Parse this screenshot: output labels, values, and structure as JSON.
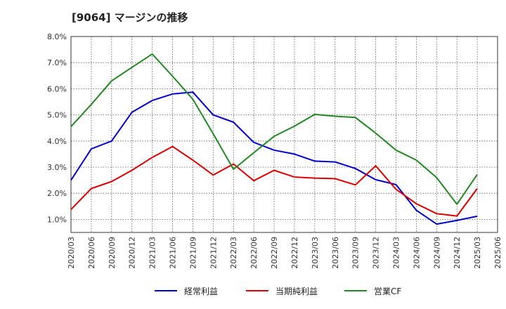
{
  "chart_data": {
    "type": "line",
    "title": "[9064]  マージンの推移",
    "xlabel": "",
    "ylabel": "",
    "ylim": [
      0.5,
      8.0
    ],
    "yticks": [
      "1.0%",
      "2.0%",
      "3.0%",
      "4.0%",
      "5.0%",
      "6.0%",
      "7.0%",
      "8.0%"
    ],
    "ytick_values": [
      1.0,
      2.0,
      3.0,
      4.0,
      5.0,
      6.0,
      7.0,
      8.0
    ],
    "grid": true,
    "legend_position": "bottom",
    "categories": [
      "2020/03",
      "2020/06",
      "2020/09",
      "2020/12",
      "2021/03",
      "2021/06",
      "2021/09",
      "2021/12",
      "2022/03",
      "2022/06",
      "2022/09",
      "2022/12",
      "2023/03",
      "2023/06",
      "2023/09",
      "2023/12",
      "2024/03",
      "2024/06",
      "2024/09",
      "2024/12",
      "2025/03",
      "2025/06"
    ],
    "series": [
      {
        "name": "経常利益",
        "color": "#0000cc",
        "values": [
          2.5,
          3.7,
          4.0,
          5.1,
          5.55,
          5.8,
          5.87,
          5.0,
          4.72,
          3.95,
          3.65,
          3.5,
          3.23,
          3.2,
          2.95,
          2.52,
          2.33,
          1.35,
          0.82,
          0.96,
          1.12,
          null
        ]
      },
      {
        "name": "当期純利益",
        "color": "#dd0000",
        "values": [
          1.38,
          2.18,
          2.45,
          2.88,
          3.37,
          3.79,
          3.27,
          2.7,
          3.12,
          2.48,
          2.88,
          2.62,
          2.58,
          2.56,
          2.32,
          3.05,
          2.15,
          1.6,
          1.22,
          1.13,
          2.18,
          null
        ]
      },
      {
        "name": "営業CF",
        "color": "#228822",
        "values": [
          4.55,
          5.4,
          6.3,
          6.82,
          7.33,
          6.48,
          5.6,
          4.28,
          2.92,
          3.55,
          4.18,
          4.57,
          5.02,
          4.95,
          4.9,
          4.3,
          3.65,
          3.27,
          2.6,
          1.58,
          2.72,
          null
        ]
      }
    ]
  }
}
